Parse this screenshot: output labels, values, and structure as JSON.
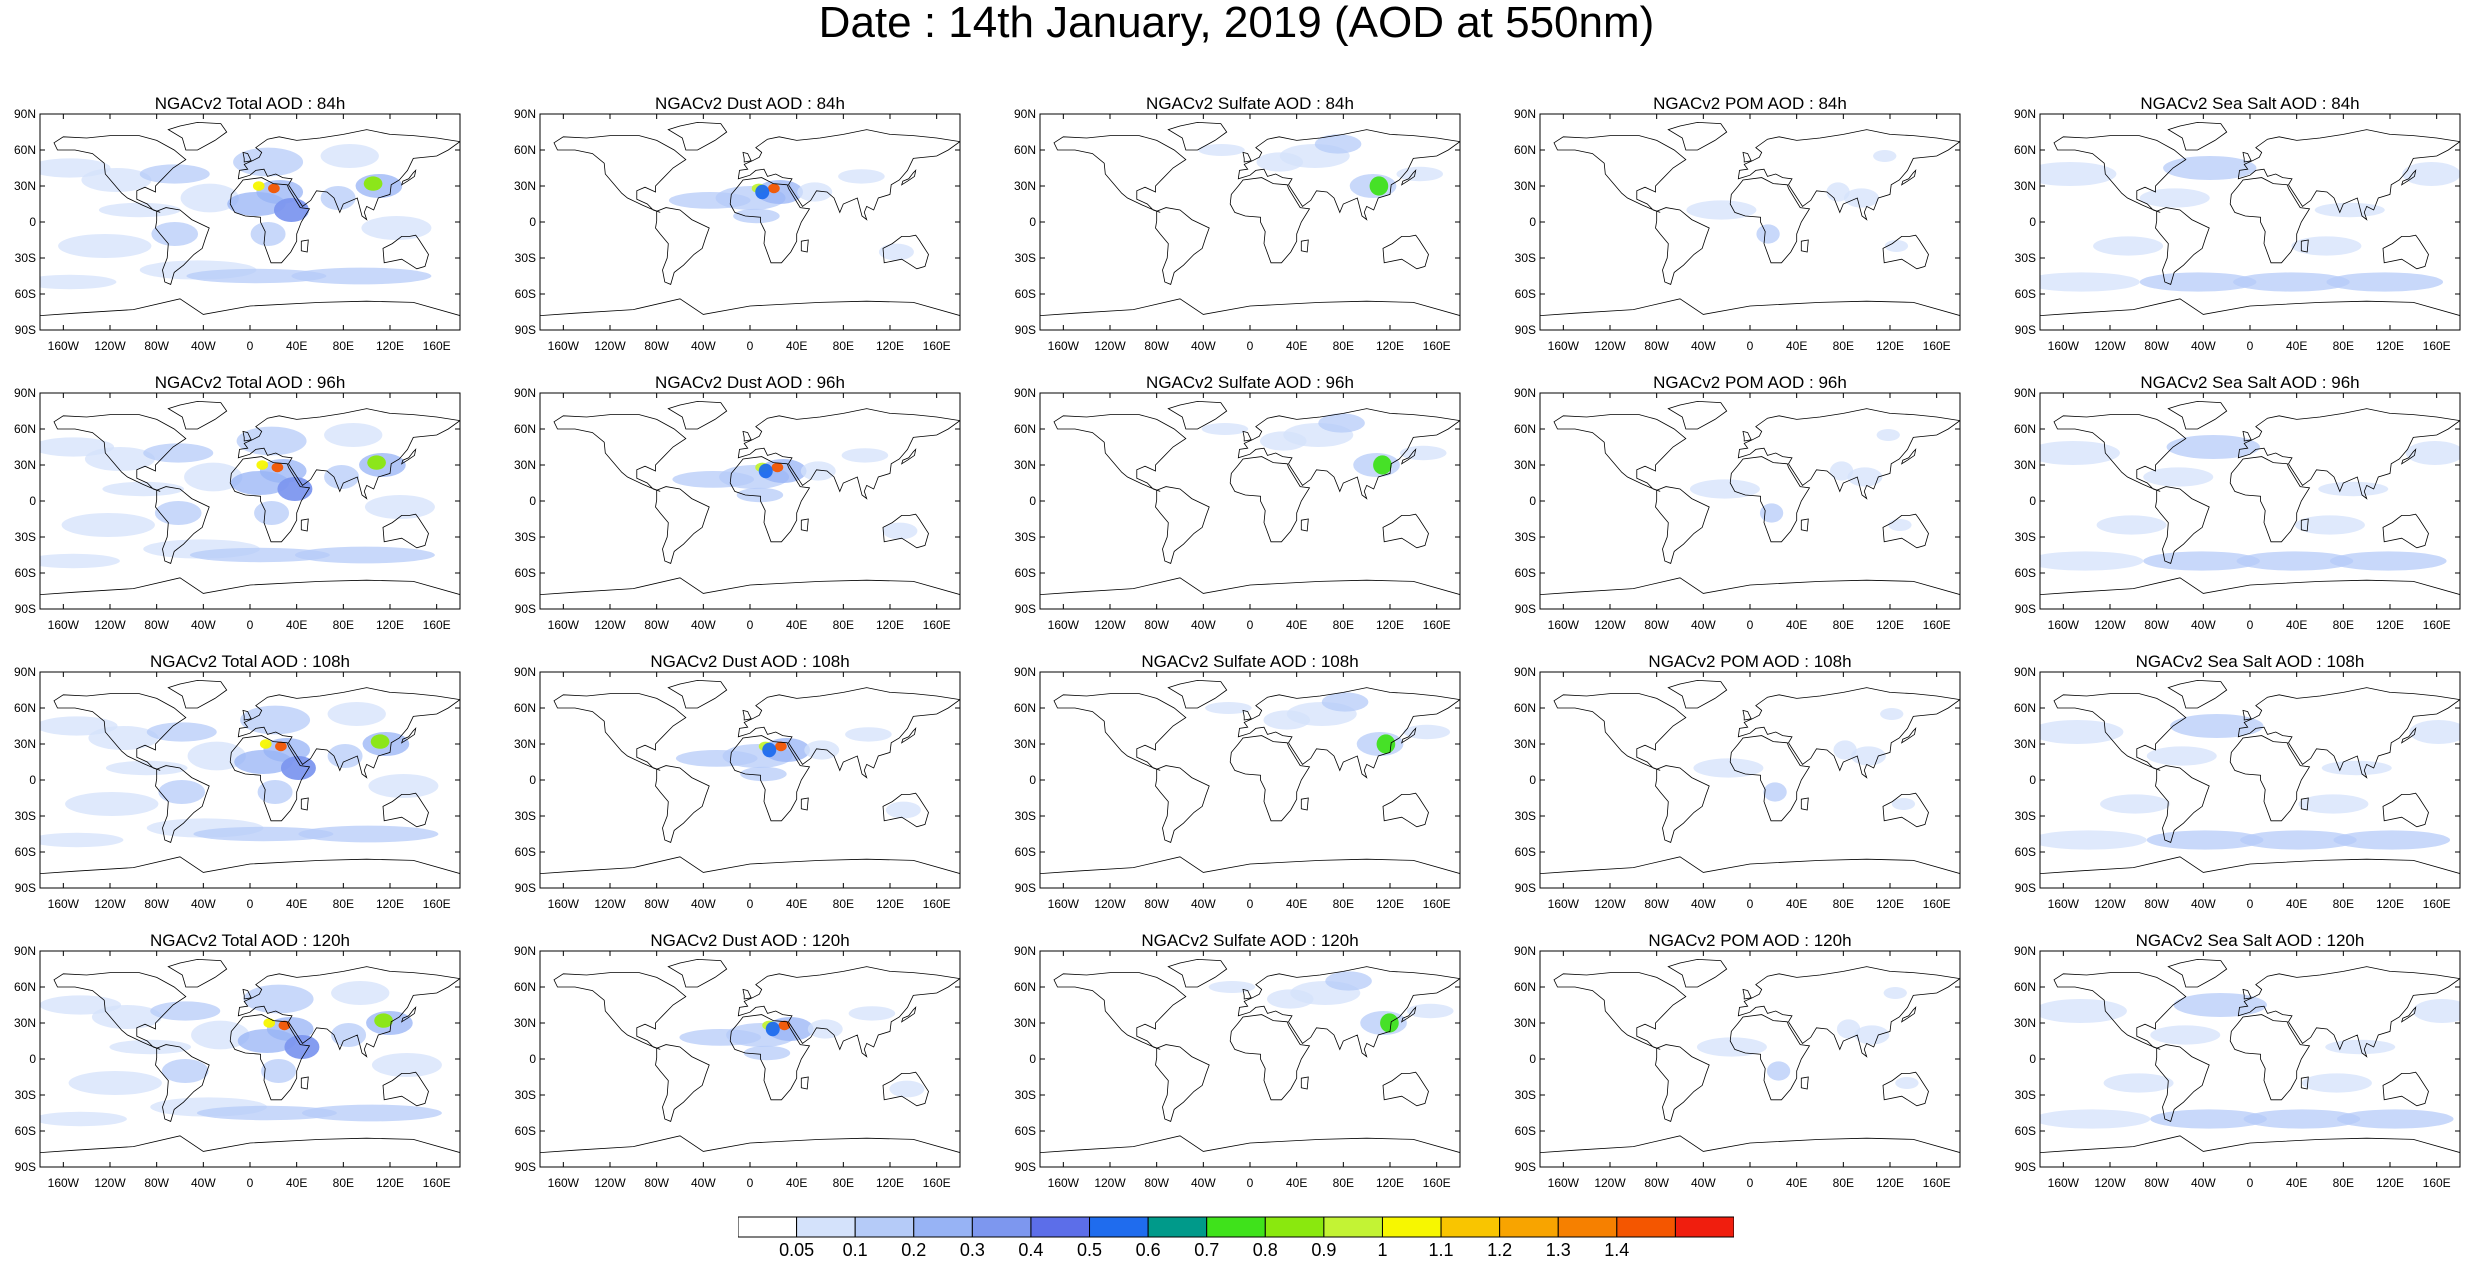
{
  "title": "Date : 14th January, 2019 (AOD at 550nm)",
  "panels": [
    [
      "NGACv2 Total AOD : 84h",
      "NGACv2 Dust AOD : 84h",
      "NGACv2 Sulfate AOD : 84h",
      "NGACv2 POM AOD : 84h",
      "NGACv2 Sea Salt AOD : 84h"
    ],
    [
      "NGACv2 Total AOD : 96h",
      "NGACv2 Dust AOD : 96h",
      "NGACv2 Sulfate AOD : 96h",
      "NGACv2 POM AOD : 96h",
      "NGACv2 Sea Salt AOD : 96h"
    ],
    [
      "NGACv2 Total AOD : 108h",
      "NGACv2 Dust AOD : 108h",
      "NGACv2 Sulfate AOD : 108h",
      "NGACv2 POM AOD : 108h",
      "NGACv2 Sea Salt AOD : 108h"
    ],
    [
      "NGACv2 Total AOD : 120h",
      "NGACv2 Dust AOD : 120h",
      "NGACv2 Sulfate AOD : 120h",
      "NGACv2 POM AOD : 120h",
      "NGACv2 Sea Salt  AOD : 120h"
    ]
  ],
  "lat_labels": [
    "90N",
    "60N",
    "30N",
    "0",
    "30S",
    "60S",
    "90S"
  ],
  "lon_labels": [
    "160W",
    "120W",
    "80W",
    "40W",
    "0",
    "40E",
    "80E",
    "120E",
    "160E"
  ],
  "colorbar": {
    "labels": [
      "0.05",
      "0.1",
      "0.2",
      "0.3",
      "0.4",
      "0.5",
      "0.6",
      "0.7",
      "0.8",
      "0.9",
      "1",
      "1.1",
      "1.2",
      "1.3",
      "1.4"
    ],
    "colors": [
      "#ffffff",
      "#d4e2fb",
      "#b5cbf8",
      "#97b3f5",
      "#7d97ef",
      "#5c6ee9",
      "#1f6cee",
      "#009a8a",
      "#3fe21b",
      "#8ae80e",
      "#c3f334",
      "#f7f700",
      "#f9c500",
      "#f8a400",
      "#f68000",
      "#f45600",
      "#f01e0e"
    ]
  },
  "map_colors": {
    "land_outline": "#000000",
    "aod_low": "#d4e2fb",
    "aod_mid": "#97b3f5",
    "aod_high": "#5c6ee9"
  }
}
